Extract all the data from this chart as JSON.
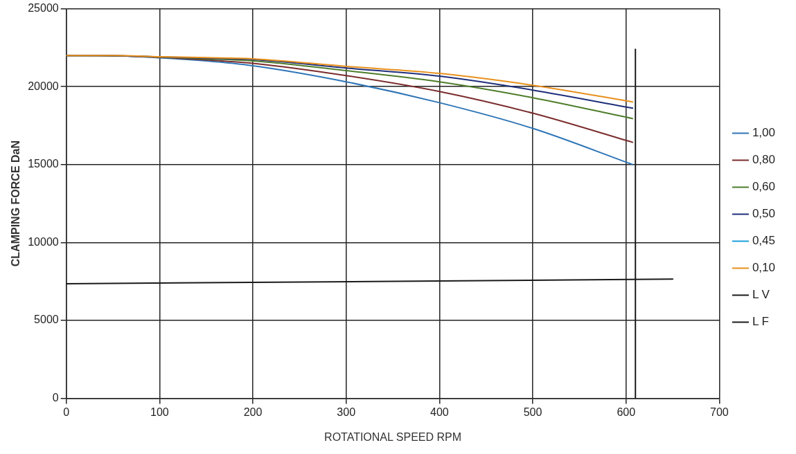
{
  "chart_data": {
    "type": "line",
    "xlabel": "ROTATIONAL SPEED RPM",
    "ylabel": "CLAMPING FORCE DaN",
    "x": [
      0,
      50,
      100,
      150,
      200,
      300,
      400,
      500,
      607
    ],
    "series": [
      {
        "name": "1,00",
        "color": "#2e75b6",
        "values": [
          22000,
          21980,
          21850,
          21650,
          21340,
          20310,
          18970,
          17320,
          15000
        ]
      },
      {
        "name": "0,80",
        "color": "#7b2c2c",
        "values": [
          22000,
          21990,
          21880,
          21720,
          21500,
          20710,
          19690,
          18300,
          16430
        ]
      },
      {
        "name": "0,60",
        "color": "#4e7d2a",
        "values": [
          22000,
          21990,
          21900,
          21790,
          21650,
          21030,
          20310,
          19290,
          17950
        ]
      },
      {
        "name": "0,50",
        "color": "#1f2f7a",
        "values": [
          22000,
          21990,
          21910,
          21830,
          21740,
          21200,
          20670,
          19780,
          18620
        ]
      },
      {
        "name": "0,45",
        "color": "#1ca0d8",
        "values": [
          null,
          null,
          null,
          null,
          null,
          null,
          null,
          null,
          null
        ]
      },
      {
        "name": "0,10",
        "color": "#e8901c",
        "values": [
          22000,
          22000,
          21920,
          21860,
          21790,
          21300,
          20850,
          20090,
          19020
        ]
      },
      {
        "name": "L V",
        "color": "#1a1a1a",
        "x": [
          0,
          650
        ],
        "values": [
          7350,
          7650
        ]
      },
      {
        "name": "L F",
        "color": "#1a1a1a",
        "x": [
          610,
          610
        ],
        "values": [
          0,
          22400
        ]
      }
    ],
    "xlim": [
      0,
      700
    ],
    "xticks": [
      0,
      100,
      200,
      300,
      400,
      500,
      600,
      700
    ],
    "ylim": [
      0,
      25000
    ],
    "yticks": [
      0,
      5000,
      10000,
      15000,
      20000,
      25000
    ],
    "grid": true,
    "legend": "right",
    "marker": "none",
    "line_style": "solid"
  }
}
